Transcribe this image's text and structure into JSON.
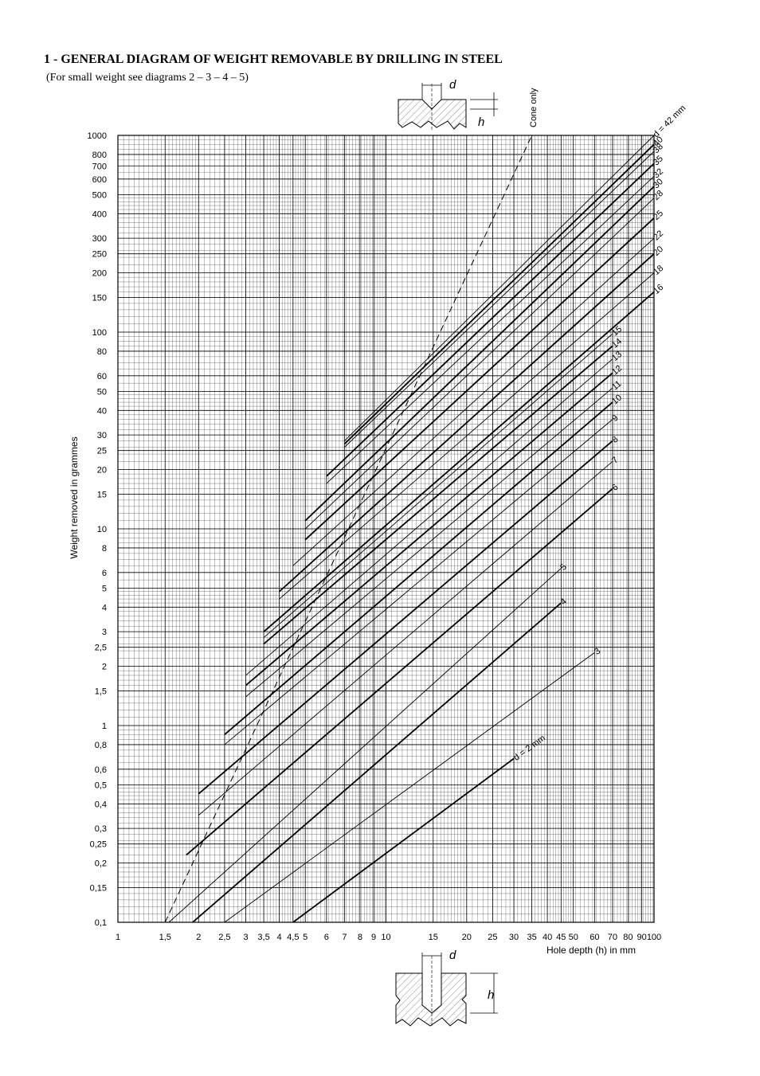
{
  "title": "1 - GENERAL DIAGRAM OF WEIGHT REMOVABLE BY DRILLING IN STEEL",
  "subtitle": "(For small weight see diagrams 2 – 3 – 4 – 5)",
  "sketch_labels": {
    "d": "d",
    "h": "h"
  },
  "cone_label": "Cone only",
  "chart_data": {
    "type": "line",
    "title": "",
    "xlabel": "Hole depth (h) in mm",
    "ylabel": "Weight removed in grammes",
    "xscale": "log",
    "yscale": "log",
    "xlim": [
      1,
      100
    ],
    "ylim": [
      0.1,
      1000
    ],
    "grid": true,
    "x_tick_labels": [
      "1",
      "1,5",
      "2",
      "2,5",
      "3",
      "3,5",
      "4",
      "4,5",
      "5",
      "6",
      "7",
      "8",
      "9",
      "10",
      "15",
      "20",
      "25",
      "30",
      "35",
      "40",
      "45",
      "50",
      "60",
      "70",
      "80",
      "90",
      "100"
    ],
    "y_tick_labels": [
      "0,1",
      "0,15",
      "0,2",
      "0,25",
      "0,3",
      "0,4",
      "0,5",
      "0,6",
      "0,8",
      "1",
      "1,5",
      "2",
      "2,5",
      "3",
      "4",
      "5",
      "6",
      "8",
      "10",
      "15",
      "20",
      "25",
      "30",
      "40",
      "50",
      "60",
      "80",
      "100",
      "150",
      "200",
      "250",
      "300",
      "400",
      "500",
      "600",
      "700",
      "800",
      "1000"
    ],
    "series": [
      {
        "name": "d = 2 mm",
        "d": 2,
        "x": [
          4.5,
          30
        ],
        "y": [
          0.1,
          0.68
        ]
      },
      {
        "name": "3",
        "d": 3,
        "x": [
          2.5,
          60
        ],
        "y": [
          0.1,
          2.35
        ]
      },
      {
        "name": "4",
        "d": 4,
        "x": [
          1.9,
          45
        ],
        "y": [
          0.1,
          4.2
        ]
      },
      {
        "name": "5",
        "d": 5,
        "x": [
          1.55,
          45
        ],
        "y": [
          0.1,
          6.3
        ]
      },
      {
        "name": "6",
        "d": 6,
        "x": [
          1.8,
          70
        ],
        "y": [
          0.22,
          16
        ]
      },
      {
        "name": "7",
        "d": 7,
        "x": [
          2,
          70
        ],
        "y": [
          0.35,
          22
        ]
      },
      {
        "name": "8",
        "d": 8,
        "x": [
          2,
          70
        ],
        "y": [
          0.45,
          28
        ]
      },
      {
        "name": "9",
        "d": 9,
        "x": [
          2.5,
          70
        ],
        "y": [
          0.8,
          36
        ]
      },
      {
        "name": "10",
        "d": 10,
        "x": [
          2.5,
          70
        ],
        "y": [
          0.9,
          44
        ]
      },
      {
        "name": "11",
        "d": 11,
        "x": [
          3,
          70
        ],
        "y": [
          1.4,
          52
        ]
      },
      {
        "name": "12",
        "d": 12,
        "x": [
          3,
          70
        ],
        "y": [
          1.6,
          62
        ]
      },
      {
        "name": "13",
        "d": 13,
        "x": [
          3,
          70
        ],
        "y": [
          1.8,
          73
        ]
      },
      {
        "name": "14",
        "d": 14,
        "x": [
          3.5,
          70
        ],
        "y": [
          2.6,
          85
        ]
      },
      {
        "name": "15",
        "d": 15,
        "x": [
          3.5,
          70
        ],
        "y": [
          2.8,
          98
        ]
      },
      {
        "name": "16",
        "d": 16,
        "x": [
          3.5,
          100
        ],
        "y": [
          3.0,
          160
        ]
      },
      {
        "name": "18",
        "d": 18,
        "x": [
          4,
          100
        ],
        "y": [
          4.4,
          200
        ]
      },
      {
        "name": "20",
        "d": 20,
        "x": [
          4,
          100
        ],
        "y": [
          4.8,
          250
        ]
      },
      {
        "name": "22",
        "d": 22,
        "x": [
          4.5,
          100
        ],
        "y": [
          6.5,
          300
        ]
      },
      {
        "name": "25",
        "d": 25,
        "x": [
          5,
          100
        ],
        "y": [
          8.8,
          380
        ]
      },
      {
        "name": "28",
        "d": 28,
        "x": [
          5,
          100
        ],
        "y": [
          10,
          480
        ]
      },
      {
        "name": "30",
        "d": 30,
        "x": [
          5,
          100
        ],
        "y": [
          11,
          550
        ]
      },
      {
        "name": "32",
        "d": 32,
        "x": [
          6,
          100
        ],
        "y": [
          17,
          620
        ]
      },
      {
        "name": "35",
        "d": 35,
        "x": [
          6,
          100
        ],
        "y": [
          18.5,
          720
        ]
      },
      {
        "name": "38",
        "d": 38,
        "x": [
          7,
          100
        ],
        "y": [
          26,
          830
        ]
      },
      {
        "name": "40",
        "d": 40,
        "x": [
          7,
          100
        ],
        "y": [
          27,
          900
        ]
      },
      {
        "name": "d = 42 mm",
        "d": 42,
        "x": [
          7,
          100
        ],
        "y": [
          28,
          1000
        ]
      }
    ],
    "cone_only": {
      "name": "Cone only",
      "x": [
        1.5,
        35
      ],
      "y": [
        0.1,
        1000
      ]
    }
  }
}
